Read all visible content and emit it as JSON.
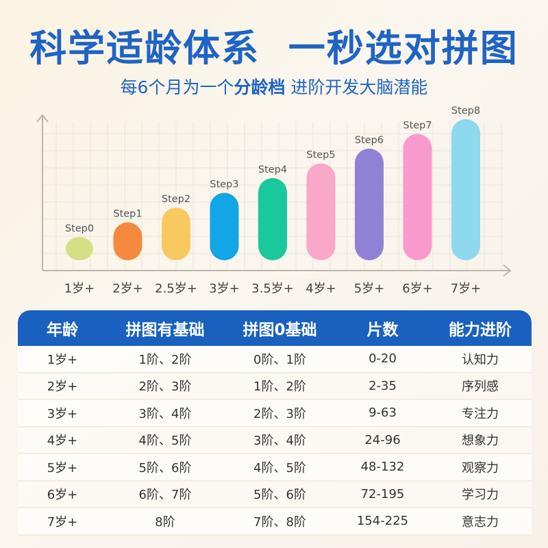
{
  "header": {
    "title": "科学适龄体系  一秒选对拼图",
    "subtitle_pre": "每6个月为一个",
    "subtitle_bold": "分龄档",
    "subtitle_post": " 进阶开发大脑潜能"
  },
  "chart_data": {
    "type": "bar",
    "categories": [
      "1岁+",
      "2岁+",
      "2.5岁+",
      "3岁+",
      "3.5岁+",
      "4岁+",
      "5岁+",
      "6岁+",
      "7岁+"
    ],
    "series": [
      {
        "values": [
          0,
          1,
          2,
          3,
          4,
          5,
          6,
          7,
          8
        ],
        "labels": [
          "Step0",
          "Step1",
          "Step2",
          "Step3",
          "Step4",
          "Step5",
          "Step6",
          "Step7",
          "Step8"
        ],
        "colors": [
          "#d4df86",
          "#f58a3e",
          "#f9c961",
          "#12a6e6",
          "#19c89b",
          "#f9a8c8",
          "#8f82d4",
          "#f99ace",
          "#8ed9ee"
        ]
      }
    ],
    "grid": true
  },
  "table": {
    "headers": [
      "年龄",
      "拼图有基础",
      "拼图0基础",
      "片数",
      "能力进阶"
    ],
    "rows": [
      [
        "1岁+",
        "1阶、2阶",
        "0阶、1阶",
        "0-20",
        "认知力"
      ],
      [
        "2岁+",
        "2阶、3阶",
        "1阶、2阶",
        "2-35",
        "序列感"
      ],
      [
        "3岁+",
        "3阶、4阶",
        "2阶、3阶",
        "9-63",
        "专注力"
      ],
      [
        "4岁+",
        "4阶、5阶",
        "3阶、4阶",
        "24-96",
        "想象力"
      ],
      [
        "5岁+",
        "5阶、6阶",
        "4阶、5阶",
        "48-132",
        "观察力"
      ],
      [
        "6岁+",
        "6阶、7阶",
        "5阶、6阶",
        "72-195",
        "学习力"
      ],
      [
        "7岁+",
        "8阶",
        "7阶、8阶",
        "154-225",
        "意志力"
      ]
    ]
  }
}
